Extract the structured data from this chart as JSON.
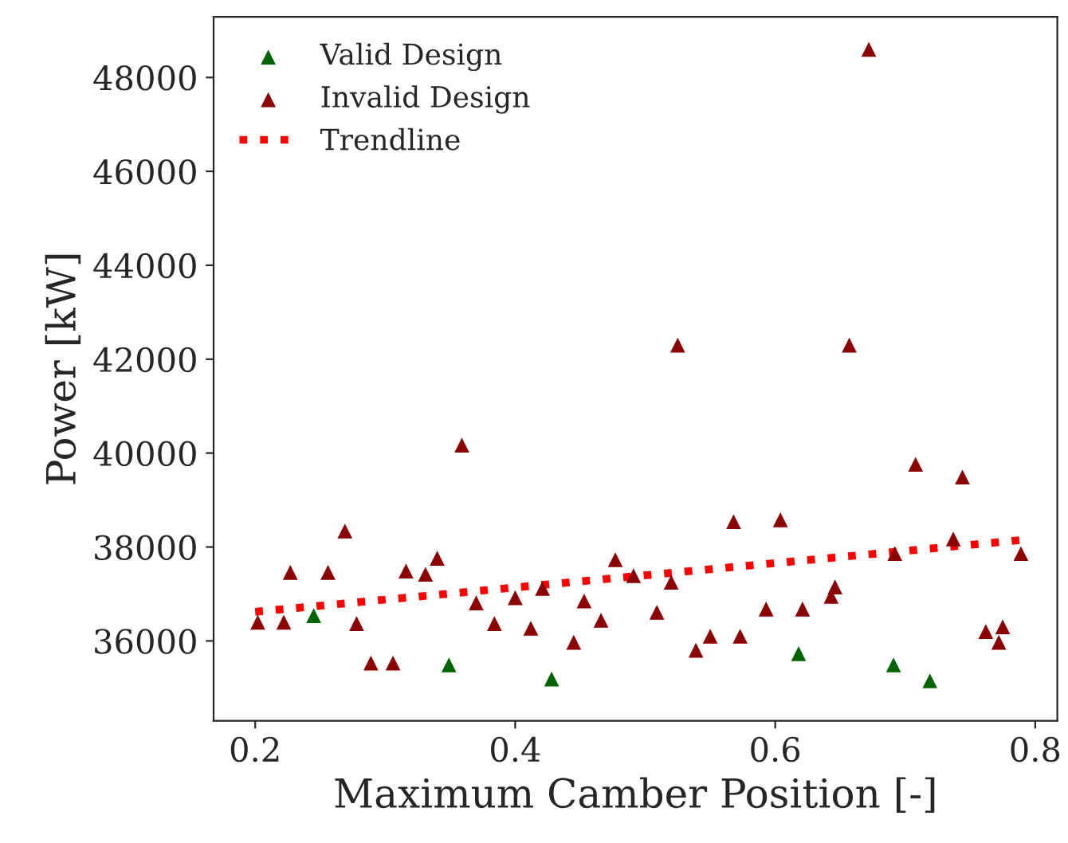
{
  "chart_data": {
    "type": "scatter",
    "xlabel": "Maximum Camber Position [-]",
    "ylabel": "Power [kW]",
    "xlim": [
      0.168,
      0.817
    ],
    "ylim": [
      34300,
      49290
    ],
    "xticks": [
      0.2,
      0.4,
      0.6,
      0.8
    ],
    "yticks": [
      36000,
      38000,
      40000,
      42000,
      44000,
      46000,
      48000
    ],
    "grid": false,
    "legend": "top left",
    "marker": "triangle",
    "series": [
      {
        "name": "Valid Design",
        "color": "#006400",
        "x": [
          0.245,
          0.349,
          0.428,
          0.618,
          0.691,
          0.719
        ],
        "values": [
          36540,
          35490,
          35190,
          35730,
          35490,
          35150
        ]
      },
      {
        "name": "Invalid Design",
        "color": "#8b0000",
        "x": [
          0.202,
          0.222,
          0.227,
          0.256,
          0.269,
          0.278,
          0.289,
          0.306,
          0.316,
          0.331,
          0.34,
          0.359,
          0.37,
          0.384,
          0.4,
          0.412,
          0.421,
          0.445,
          0.453,
          0.466,
          0.477,
          0.491,
          0.509,
          0.52,
          0.525,
          0.539,
          0.55,
          0.568,
          0.573,
          0.593,
          0.604,
          0.621,
          0.643,
          0.646,
          0.657,
          0.672,
          0.692,
          0.708,
          0.737,
          0.744,
          0.762,
          0.772,
          0.775,
          0.789
        ],
        "values": [
          36400,
          36400,
          37460,
          37460,
          38340,
          36370,
          35530,
          35530,
          37490,
          37420,
          37760,
          40170,
          36810,
          36370,
          36920,
          36270,
          37120,
          35970,
          36850,
          36440,
          37730,
          37390,
          36610,
          37250,
          42300,
          35800,
          36100,
          38540,
          36100,
          36680,
          38580,
          36680,
          36950,
          37150,
          42300,
          48600,
          37860,
          39760,
          38170,
          39490,
          36200,
          35970,
          36300,
          37860
        ]
      },
      {
        "name": "Trendline",
        "type": "line",
        "color": "#ff0000",
        "line_style": "dotted",
        "marker": "none",
        "x": [
          0.2,
          0.79
        ],
        "values": [
          36620,
          38150
        ]
      }
    ]
  }
}
